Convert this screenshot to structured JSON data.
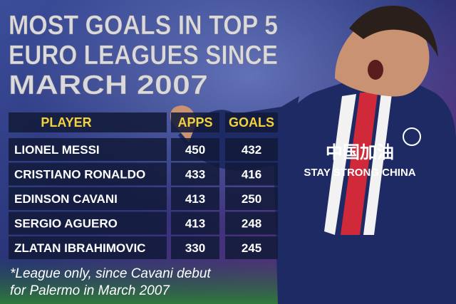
{
  "header": {
    "title_lines": [
      "MOST GOALS IN TOP 5",
      "EURO LEAGUES SINCE",
      "MARCH 2007"
    ]
  },
  "table": {
    "columns": [
      "PLAYER",
      "APPS",
      "GOALS"
    ],
    "rows": [
      [
        "LIONEL MESSI",
        450,
        432
      ],
      [
        "CRISTIANO RONALDO",
        433,
        416
      ],
      [
        "EDINSON CAVANI",
        413,
        250
      ],
      [
        "SERGIO AGUERO",
        413,
        248
      ],
      [
        "ZLATAN IBRAHIMOVIC",
        330,
        245
      ]
    ]
  },
  "footnote": {
    "lines": [
      "*League only, since Cavani debut",
      "for Palermo in March 2007"
    ]
  },
  "photo_text": {
    "slogan_chinese": "中国加油",
    "slogan": "STAY STRONG CHINA"
  }
}
